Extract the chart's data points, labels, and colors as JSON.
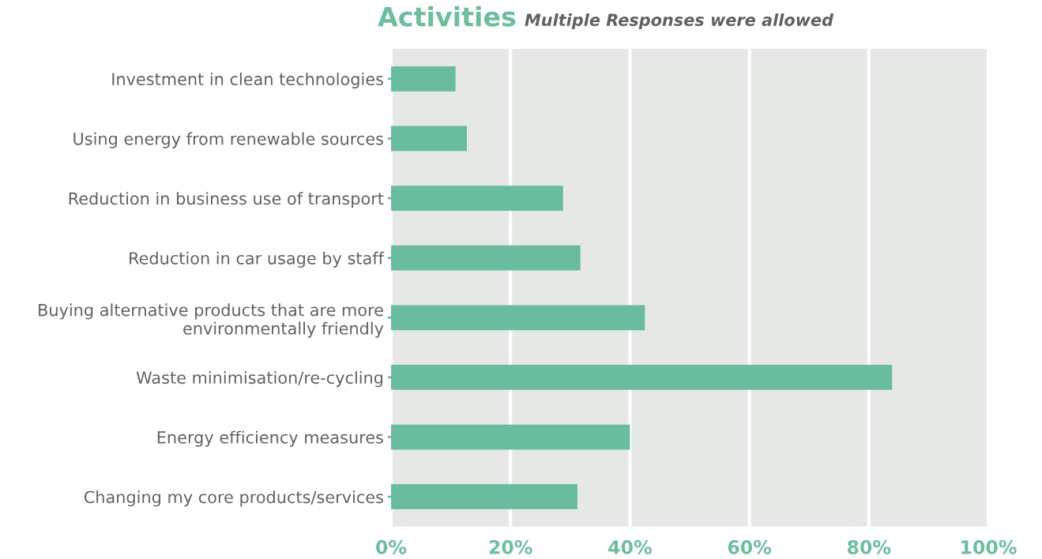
{
  "chart_data": {
    "type": "bar",
    "orientation": "horizontal",
    "title": "Activities",
    "subtitle": "Multiple Responses were allowed",
    "categories": [
      "Investment in clean technologies",
      "Using energy from renewable sources",
      "Reduction in business use of transport",
      "Reduction in car usage by staff",
      "Buying alternative products that are more\nenvironmentally friendly",
      "Waste minimisation/re-cycling",
      "Energy efficiency measures",
      "Changing my core products/services"
    ],
    "values": [
      10.8,
      12.7,
      28.8,
      31.7,
      42.5,
      83.9,
      40,
      31.2
    ],
    "color": "#69bd9e",
    "xlim": [
      0,
      100
    ],
    "xticks": [
      {
        "value": 0,
        "label": "0%"
      },
      {
        "value": 20,
        "label": "20%"
      },
      {
        "value": 40,
        "label": "40%"
      },
      {
        "value": 60,
        "label": "60%"
      },
      {
        "value": 80,
        "label": "80%"
      },
      {
        "value": 100,
        "label": "100%"
      }
    ],
    "grid": "x",
    "legend": false
  }
}
